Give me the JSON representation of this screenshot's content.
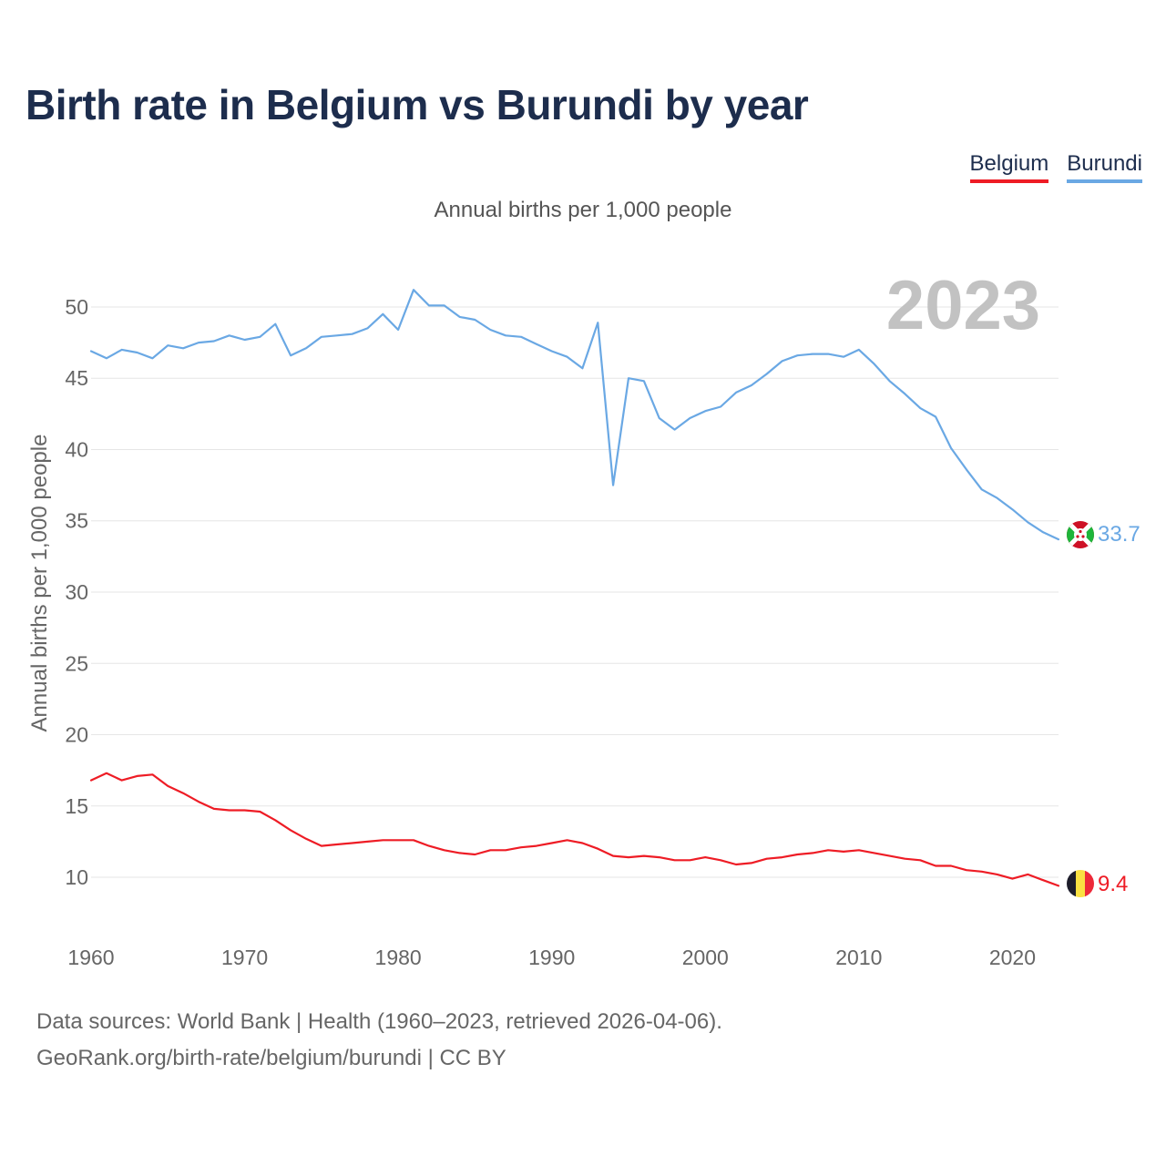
{
  "title": "Birth rate in Belgium vs Burundi by year",
  "subtitle": "Annual births per 1,000 people",
  "year_stamp": "2023",
  "legend": {
    "belgium": "Belgium",
    "burundi": "Burundi"
  },
  "footer": {
    "line1": "Data sources: World Bank | Health (1960–2023, retrieved 2026-04-06).",
    "line2": "GeoRank.org/birth-rate/belgium/burundi | CC BY"
  },
  "colors": {
    "belgium": "#ee1c25",
    "burundi": "#6aa8e4",
    "grid": "#e6e6e6",
    "axis_text": "#666666"
  },
  "chart_data": {
    "type": "line",
    "title": "Birth rate in Belgium vs Burundi by year",
    "xlabel": "",
    "ylabel": "Annual births per 1,000 people",
    "xlim": [
      1960,
      2023
    ],
    "ylim": [
      7,
      53
    ],
    "xticks": [
      1960,
      1970,
      1980,
      1990,
      2000,
      2010,
      2020
    ],
    "yticks": [
      10,
      15,
      20,
      25,
      30,
      35,
      40,
      45,
      50
    ],
    "grid": true,
    "legend_position": "top-right",
    "x": [
      1960,
      1961,
      1962,
      1963,
      1964,
      1965,
      1966,
      1967,
      1968,
      1969,
      1970,
      1971,
      1972,
      1973,
      1974,
      1975,
      1976,
      1977,
      1978,
      1979,
      1980,
      1981,
      1982,
      1983,
      1984,
      1985,
      1986,
      1987,
      1988,
      1989,
      1990,
      1991,
      1992,
      1993,
      1994,
      1995,
      1996,
      1997,
      1998,
      1999,
      2000,
      2001,
      2002,
      2003,
      2004,
      2005,
      2006,
      2007,
      2008,
      2009,
      2010,
      2011,
      2012,
      2013,
      2014,
      2015,
      2016,
      2017,
      2018,
      2019,
      2020,
      2021,
      2022,
      2023
    ],
    "series": [
      {
        "name": "Belgium",
        "end_label": "9.4",
        "values": [
          16.8,
          17.3,
          16.8,
          17.1,
          17.2,
          16.4,
          15.9,
          15.3,
          14.8,
          14.7,
          14.7,
          14.6,
          14.0,
          13.3,
          12.7,
          12.2,
          12.3,
          12.4,
          12.5,
          12.6,
          12.6,
          12.6,
          12.2,
          11.9,
          11.7,
          11.6,
          11.9,
          11.9,
          12.1,
          12.2,
          12.4,
          12.6,
          12.4,
          12.0,
          11.5,
          11.4,
          11.5,
          11.4,
          11.2,
          11.2,
          11.4,
          11.2,
          10.9,
          11.0,
          11.3,
          11.4,
          11.6,
          11.7,
          11.9,
          11.8,
          11.9,
          11.7,
          11.5,
          11.3,
          11.2,
          10.8,
          10.8,
          10.5,
          10.4,
          10.2,
          9.9,
          10.2,
          9.8,
          9.4
        ]
      },
      {
        "name": "Burundi",
        "end_label": "33.7",
        "values": [
          46.9,
          46.4,
          47.0,
          46.8,
          46.4,
          47.3,
          47.1,
          47.5,
          47.6,
          48.0,
          47.7,
          47.9,
          48.8,
          46.6,
          47.1,
          47.9,
          48.0,
          48.1,
          48.5,
          49.5,
          48.4,
          51.2,
          50.1,
          50.1,
          49.3,
          49.1,
          48.4,
          48.0,
          47.9,
          47.4,
          46.9,
          46.5,
          45.7,
          48.9,
          37.5,
          45.0,
          44.8,
          42.2,
          41.4,
          42.2,
          42.7,
          43.0,
          44.0,
          44.5,
          45.3,
          46.2,
          46.6,
          46.7,
          46.7,
          46.5,
          47.0,
          46.0,
          44.8,
          43.9,
          42.9,
          42.3,
          40.1,
          38.6,
          37.2,
          36.6,
          35.8,
          34.9,
          34.2,
          33.7
        ]
      }
    ]
  }
}
